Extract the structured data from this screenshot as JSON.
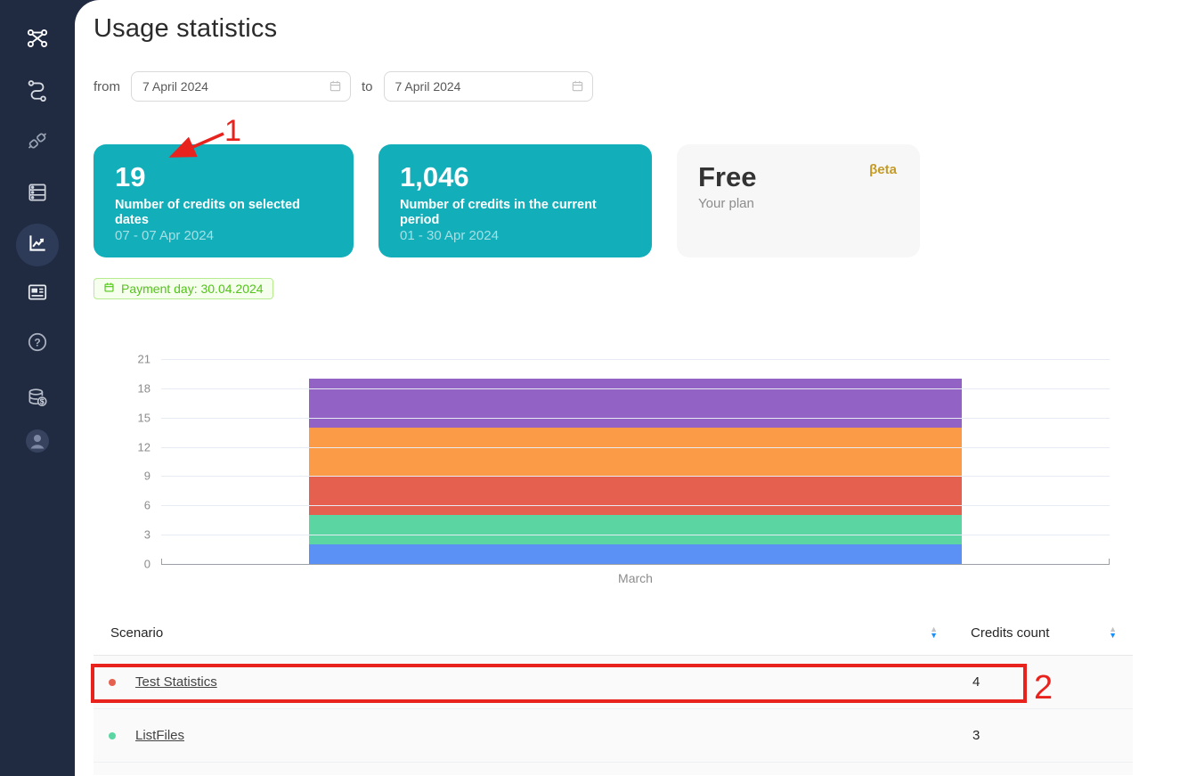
{
  "header": {
    "title": "Usage statistics"
  },
  "sidebar": {
    "icons": [
      "workflow-icon",
      "route-icon",
      "plug-icon",
      "server-icon",
      "stats-icon",
      "news-icon",
      "help-icon",
      "billing-icon",
      "user-icon"
    ],
    "active_icon": "stats-icon"
  },
  "filters": {
    "from_label": "from",
    "from_value": "7 April 2024",
    "to_label": "to",
    "to_value": "7 April 2024"
  },
  "cards": {
    "selected": {
      "value": "19",
      "label": "Number of credits on selected dates",
      "period": "07 - 07 Apr 2024"
    },
    "current": {
      "value": "1,046",
      "label": "Number of credits in the current period",
      "period": "01 - 30 Apr 2024"
    },
    "plan": {
      "name": "Free",
      "label": "Your plan",
      "badge": "βeta"
    }
  },
  "payment": {
    "label": "Payment day: 30.04.2024"
  },
  "chart_data": {
    "type": "stacked-bar",
    "categories": [
      "March"
    ],
    "ylim": [
      0,
      21
    ],
    "ytick_step": 3,
    "segments": [
      {
        "color": "#5b90f5",
        "value": 2
      },
      {
        "color": "#5bd6a2",
        "value": 3
      },
      {
        "color": "#e6604f",
        "value": 4
      },
      {
        "color": "#fb9a47",
        "value": 5
      },
      {
        "color": "#9263c4",
        "value": 5
      }
    ],
    "total": 19,
    "grid": true,
    "legend": false
  },
  "table": {
    "columns": [
      "Scenario",
      "Credits count"
    ],
    "rows": [
      {
        "dot_color": "#e6604f",
        "scenario": "Test Statistics",
        "credits": "4"
      },
      {
        "dot_color": "#5bd6a2",
        "scenario": "ListFiles",
        "credits": "3"
      }
    ]
  },
  "annotations": {
    "step1": "1",
    "step2": "2",
    "color": "#e8231d"
  },
  "colors": {
    "accent_teal": "#12aeba",
    "sidebar_bg": "#202b42",
    "tag_green": "#52c41a",
    "sort_active_blue": "#1890ff",
    "annotation_red": "#e8231d"
  }
}
